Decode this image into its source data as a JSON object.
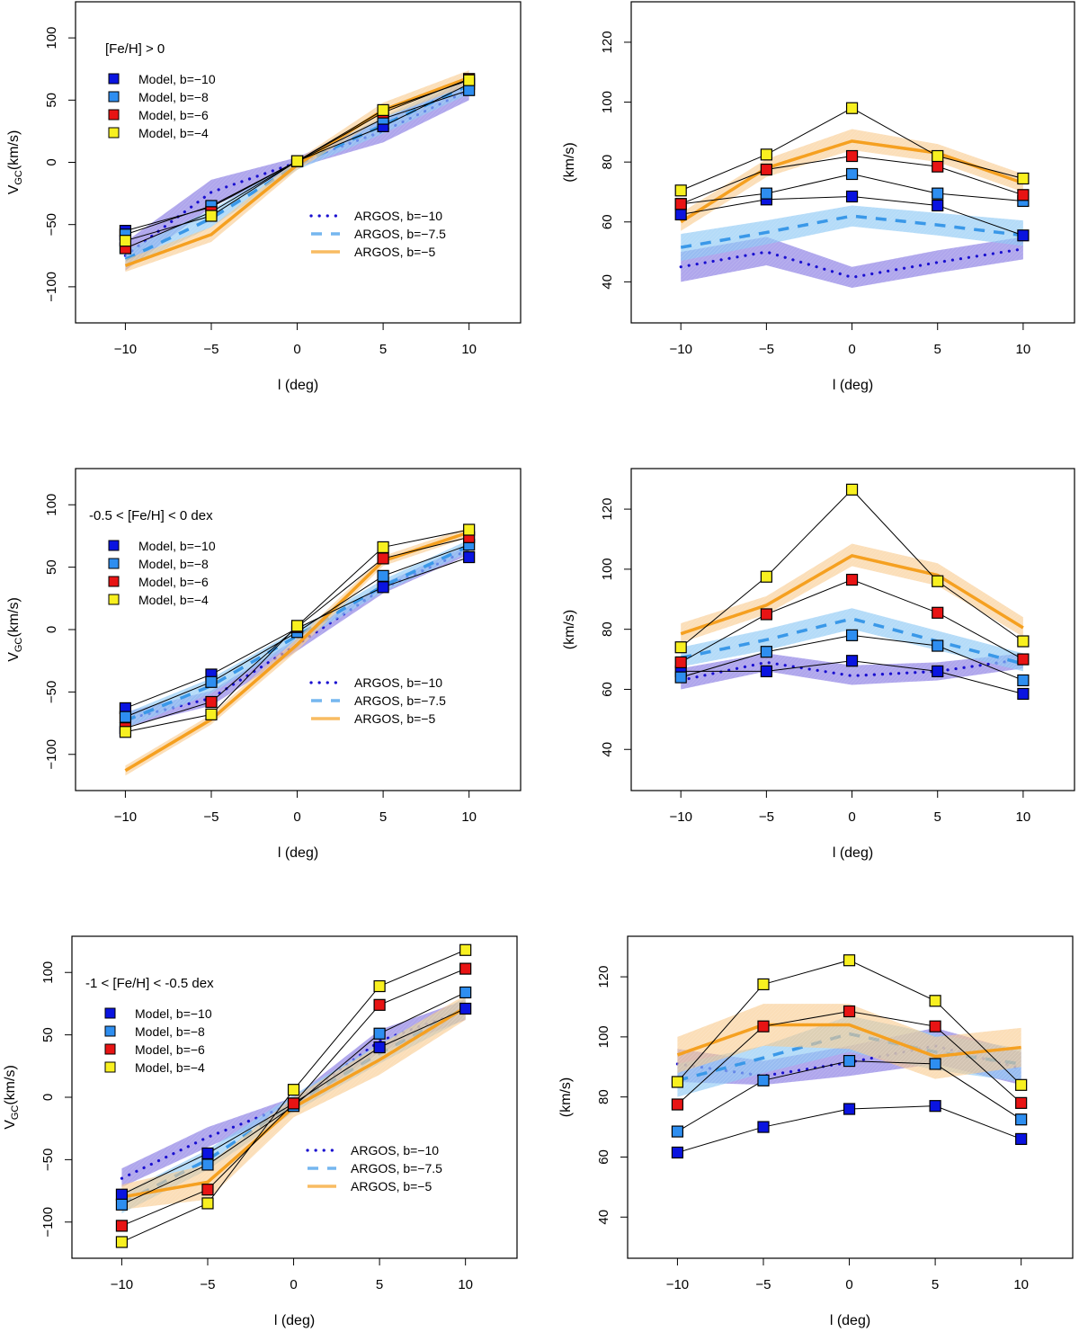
{
  "figure": {
    "x_values": [
      -10,
      -5,
      0,
      5,
      10
    ],
    "xlabel": "l (deg)",
    "xticks": [
      -10,
      -5,
      0,
      5,
      10
    ],
    "colors": {
      "model_b-10": "#0a14e0",
      "model_b-8": "#2e8ef0",
      "model_b-6": "#e81414",
      "model_b-4": "#f8f020",
      "argos_b-10_line": "#1a10d0",
      "argos_b-10_band": "#7a6ae0",
      "argos_b-7.5_line": "#3a98e8",
      "argos_b-7.5_band": "#8cc8f4",
      "argos_b-5_line": "#f5a020",
      "argos_b-5_band": "#f8c888"
    }
  },
  "chart_data": [
    {
      "id": "mean-fe-gt0",
      "type": "line",
      "title": "[Fe/H] > 0",
      "xlabel": "l (deg)",
      "ylabel": "V_GC(km/s)",
      "ylabel_main": "V",
      "ylabel_sub": "GC",
      "ylabel_rest": "(km/s)",
      "xlim": [
        -12.9,
        13
      ],
      "ylim": [
        -129,
        129
      ],
      "yticks": [
        -100,
        -50,
        0,
        50,
        100
      ],
      "model_legend": [
        "Model, b=-10",
        "Model, b=-8",
        "Model, b=-6",
        "Model, b=-4"
      ],
      "argos_legend": [
        "ARGOS, b=-10",
        "ARGOS, b=-7.5",
        "ARGOS, b=-5"
      ],
      "argos": [
        {
          "name": "ARGOS, b=-10",
          "values": [
            -75,
            -24,
            0,
            25,
            58
          ],
          "lower": [
            -87,
            -36,
            -4,
            16,
            50
          ],
          "upper": [
            -64,
            -14,
            4,
            35,
            66
          ]
        },
        {
          "name": "ARGOS, b=-7.5",
          "values": [
            -78,
            -45,
            -2,
            30,
            62
          ],
          "lower": [
            -85,
            -52,
            -6,
            23,
            55
          ],
          "upper": [
            -71,
            -38,
            2,
            37,
            69
          ]
        },
        {
          "name": "ARGOS, b=-5",
          "values": [
            -83,
            -58,
            -2,
            42,
            68
          ],
          "lower": [
            -88,
            -64,
            -6,
            36,
            62
          ],
          "upper": [
            -78,
            -52,
            2,
            48,
            74
          ]
        }
      ],
      "models": [
        {
          "name": "Model, b=-10",
          "values": [
            -55,
            -36,
            1,
            29,
            63
          ]
        },
        {
          "name": "Model, b=-8",
          "values": [
            -58,
            -35,
            1,
            35,
            58
          ]
        },
        {
          "name": "Model, b=-6",
          "values": [
            -69,
            -40,
            1,
            40,
            67
          ]
        },
        {
          "name": "Model, b=-4",
          "values": [
            -63,
            -43,
            1,
            42,
            66
          ]
        }
      ]
    },
    {
      "id": "disp-fe-gt0",
      "type": "line",
      "title": "",
      "xlabel": "l (deg)",
      "ylabel": "(km/s)",
      "xlim": [
        -12.9,
        13
      ],
      "ylim": [
        26.3,
        133.5
      ],
      "yticks": [
        40,
        60,
        80,
        100,
        120
      ],
      "argos": [
        {
          "name": "ARGOS, b=-10",
          "values": [
            45,
            50,
            41.5,
            46.5,
            51
          ],
          "lower": [
            40,
            45.5,
            38,
            43,
            47.5
          ],
          "upper": [
            50,
            55,
            45,
            50.5,
            55
          ]
        },
        {
          "name": "ARGOS, b=-7.5",
          "values": [
            51.5,
            56.5,
            62,
            59,
            55.5
          ],
          "lower": [
            47,
            52.5,
            58.5,
            55.5,
            52
          ],
          "upper": [
            56,
            60.5,
            65.5,
            63,
            60.5
          ]
        },
        {
          "name": "ARGOS, b=-5",
          "values": [
            60,
            78,
            87,
            83,
            73
          ],
          "lower": [
            57,
            75,
            84,
            80,
            70
          ],
          "upper": [
            63,
            81,
            91,
            86,
            76
          ]
        }
      ],
      "models": [
        {
          "name": "Model, b=-10",
          "values": [
            62.5,
            67.5,
            68.5,
            65.5,
            55.5
          ]
        },
        {
          "name": "Model, b=-8",
          "values": [
            66,
            69.5,
            76,
            69.5,
            67
          ]
        },
        {
          "name": "Model, b=-6",
          "values": [
            66,
            77.5,
            82,
            78.5,
            69
          ]
        },
        {
          "name": "Model, b=-4",
          "values": [
            70.5,
            82.5,
            98,
            82,
            74.5
          ]
        }
      ]
    },
    {
      "id": "mean-fe-mid",
      "type": "line",
      "title": "-0.5 < [Fe/H] < 0 dex",
      "xlabel": "l (deg)",
      "ylabel": "V_GC(km/s)",
      "ylabel_main": "V",
      "ylabel_sub": "GC",
      "ylabel_rest": "(km/s)",
      "xlim": [
        -12.9,
        13
      ],
      "ylim": [
        -129,
        129
      ],
      "yticks": [
        -100,
        -50,
        0,
        50,
        100
      ],
      "model_legend": [
        "Model, b=-10",
        "Model, b=-8",
        "Model, b=-6",
        "Model, b=-4"
      ],
      "argos_legend": [
        "ARGOS, b=-10",
        "ARGOS, b=-7.5",
        "ARGOS, b=-5"
      ],
      "argos": [
        {
          "name": "ARGOS, b=-10",
          "values": [
            -72,
            -55,
            -12,
            33,
            64
          ],
          "lower": [
            -78,
            -61,
            -17,
            29,
            60
          ],
          "upper": [
            -66,
            -49,
            -7,
            37,
            68
          ]
        },
        {
          "name": "ARGOS, b=-7.5",
          "values": [
            -73,
            -45,
            -5,
            35,
            67
          ],
          "lower": [
            -79,
            -51,
            -10,
            30,
            62
          ],
          "upper": [
            -67,
            -39,
            0,
            40,
            72
          ]
        },
        {
          "name": "ARGOS, b=-5",
          "values": [
            -113,
            -72,
            -12,
            55,
            78
          ],
          "lower": [
            -117,
            -76,
            -17,
            51,
            74
          ],
          "upper": [
            -109,
            -68,
            -7,
            59,
            82
          ]
        }
      ],
      "models": [
        {
          "name": "Model, b=-10",
          "values": [
            -63,
            -36,
            1,
            34,
            58
          ]
        },
        {
          "name": "Model, b=-8",
          "values": [
            -70,
            -42,
            -2,
            43,
            68
          ]
        },
        {
          "name": "Model, b=-6",
          "values": [
            -79,
            -58,
            2,
            57,
            74
          ]
        },
        {
          "name": "Model, b=-4",
          "values": [
            -82,
            -68,
            3,
            66,
            80
          ]
        }
      ]
    },
    {
      "id": "disp-fe-mid",
      "type": "line",
      "title": "",
      "xlabel": "l (deg)",
      "ylabel": "(km/s)",
      "xlim": [
        -12.9,
        13
      ],
      "ylim": [
        26.3,
        133.5
      ],
      "yticks": [
        40,
        60,
        80,
        100,
        120
      ],
      "argos": [
        {
          "name": "ARGOS, b=-10",
          "values": [
            63,
            69,
            64.5,
            66,
            70
          ],
          "lower": [
            60,
            66,
            61.5,
            63,
            67
          ],
          "upper": [
            67,
            72,
            68,
            69,
            72
          ]
        },
        {
          "name": "ARGOS, b=-7.5",
          "values": [
            70.5,
            76.5,
            83.5,
            76,
            68.5
          ],
          "lower": [
            67.5,
            73,
            80,
            73,
            66
          ],
          "upper": [
            74,
            80,
            87,
            79.5,
            72
          ]
        },
        {
          "name": "ARGOS, b=-5",
          "values": [
            78.5,
            88,
            104.5,
            98,
            80.5
          ],
          "lower": [
            75.5,
            85,
            101,
            94.5,
            77.5
          ],
          "upper": [
            82,
            91,
            108.5,
            102,
            84
          ]
        }
      ],
      "models": [
        {
          "name": "Model, b=-10",
          "values": [
            66,
            66,
            69.5,
            66,
            58.5
          ]
        },
        {
          "name": "Model, b=-8",
          "values": [
            64,
            72.5,
            78,
            74.5,
            63
          ]
        },
        {
          "name": "Model, b=-6",
          "values": [
            69,
            85,
            96.5,
            85.5,
            70
          ]
        },
        {
          "name": "Model, b=-4",
          "values": [
            74,
            97.5,
            126.5,
            96,
            76
          ]
        }
      ]
    },
    {
      "id": "mean-fe-low",
      "type": "line",
      "title": "-1 < [Fe/H] < -0.5 dex",
      "xlabel": "l (deg)",
      "ylabel": "V_GC(km/s)",
      "ylabel_main": "V",
      "ylabel_sub": "GC",
      "ylabel_rest": "(km/s)",
      "xlim": [
        -12.9,
        13
      ],
      "ylim": [
        -129,
        129
      ],
      "yticks": [
        -100,
        -50,
        0,
        50,
        100
      ],
      "model_legend": [
        "Model, b=-10",
        "Model, b=-8",
        "Model, b=-6",
        "Model, b=-4"
      ],
      "argos_legend": [
        "ARGOS, b=-10",
        "ARGOS, b=-7.5",
        "ARGOS, b=-5"
      ],
      "argos": [
        {
          "name": "ARGOS, b=-10",
          "values": [
            -65,
            -32,
            -5,
            45,
            70
          ],
          "lower": [
            -72,
            -40,
            -10,
            36,
            62
          ],
          "upper": [
            -57,
            -24,
            0,
            54,
            78
          ]
        },
        {
          "name": "ARGOS, b=-7.5",
          "values": [
            -85,
            -50,
            -5,
            35,
            72
          ],
          "lower": [
            -93,
            -58,
            -12,
            27,
            63
          ],
          "upper": [
            -77,
            -42,
            2,
            43,
            80
          ]
        },
        {
          "name": "ARGOS, b=-5",
          "values": [
            -80,
            -68,
            -8,
            30,
            72
          ],
          "lower": [
            -90,
            -82,
            -16,
            18,
            62
          ],
          "upper": [
            -70,
            -54,
            0,
            42,
            82
          ]
        }
      ],
      "models": [
        {
          "name": "Model, b=-10",
          "values": [
            -78,
            -45,
            -5,
            40,
            71
          ]
        },
        {
          "name": "Model, b=-8",
          "values": [
            -86,
            -54,
            -7,
            51,
            84
          ]
        },
        {
          "name": "Model, b=-6",
          "values": [
            -103,
            -74,
            -5,
            74,
            103
          ]
        },
        {
          "name": "Model, b=-4",
          "values": [
            -116,
            -85,
            6,
            89,
            118
          ]
        }
      ]
    },
    {
      "id": "disp-fe-low",
      "type": "line",
      "title": "",
      "xlabel": "l (deg)",
      "ylabel": "(km/s)",
      "xlim": [
        -12.9,
        13
      ],
      "ylim": [
        26.3,
        133.5
      ],
      "yticks": [
        40,
        60,
        80,
        100,
        120
      ],
      "argos": [
        {
          "name": "ARGOS, b=-10",
          "values": [
            91,
            87,
            91.5,
            97,
            89.5
          ],
          "lower": [
            85,
            84,
            87,
            91,
            84
          ],
          "upper": [
            96,
            92,
            97,
            103,
            95
          ]
        },
        {
          "name": "ARGOS, b=-7.5",
          "values": [
            85.5,
            93,
            101,
            95,
            91
          ],
          "lower": [
            80,
            88,
            95,
            89,
            85
          ],
          "upper": [
            91,
            97,
            107,
            101,
            96
          ]
        },
        {
          "name": "ARGOS, b=-5",
          "values": [
            94,
            104,
            104,
            93.5,
            96.5
          ],
          "lower": [
            88,
            97,
            96,
            86,
            90
          ],
          "upper": [
            100,
            111,
            111,
            100,
            103
          ]
        }
      ],
      "models": [
        {
          "name": "Model, b=-10",
          "values": [
            61.5,
            70,
            76,
            77,
            66
          ]
        },
        {
          "name": "Model, b=-8",
          "values": [
            68.5,
            85.5,
            92,
            91,
            72.5
          ]
        },
        {
          "name": "Model, b=-6",
          "values": [
            77.5,
            103.5,
            108.5,
            103.5,
            78
          ]
        },
        {
          "name": "Model, b=-4",
          "values": [
            85,
            117.5,
            125.5,
            112,
            84
          ]
        }
      ]
    }
  ]
}
